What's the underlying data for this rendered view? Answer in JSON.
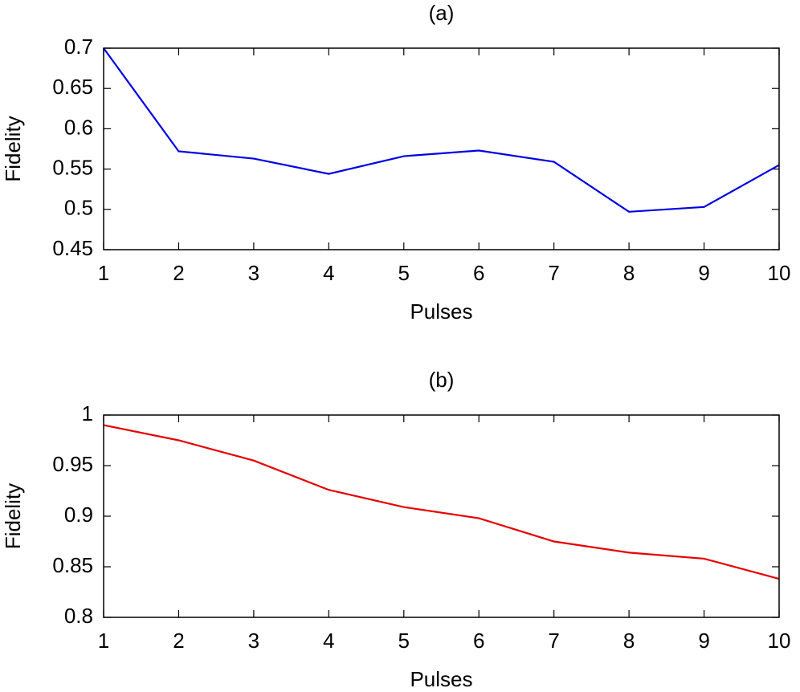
{
  "chart_data": [
    {
      "type": "line",
      "title": "(a)",
      "xlabel": "Pulses",
      "ylabel": "Fidelity",
      "x": [
        1,
        2,
        3,
        4,
        5,
        6,
        7,
        8,
        9,
        10
      ],
      "values": [
        0.7,
        0.572,
        0.563,
        0.544,
        0.566,
        0.573,
        0.559,
        0.497,
        0.503,
        0.555
      ],
      "color": "#0000e6",
      "xlim": [
        1,
        10
      ],
      "xticks": [
        1,
        2,
        3,
        4,
        5,
        6,
        7,
        8,
        9,
        10
      ],
      "ylim": [
        0.45,
        0.7
      ],
      "yticks": [
        0.45,
        0.5,
        0.55,
        0.6,
        0.65,
        0.7
      ],
      "grid": false
    },
    {
      "type": "line",
      "title": "(b)",
      "xlabel": "Pulses",
      "ylabel": "Fidelity",
      "x": [
        1,
        2,
        3,
        4,
        5,
        6,
        7,
        8,
        9,
        10
      ],
      "values": [
        0.99,
        0.975,
        0.955,
        0.926,
        0.909,
        0.898,
        0.875,
        0.864,
        0.858,
        0.838
      ],
      "color": "#e60000",
      "xlim": [
        1,
        10
      ],
      "xticks": [
        1,
        2,
        3,
        4,
        5,
        6,
        7,
        8,
        9,
        10
      ],
      "ylim": [
        0.8,
        1
      ],
      "yticks": [
        0.8,
        0.85,
        0.9,
        0.95,
        1
      ],
      "grid": false
    }
  ]
}
